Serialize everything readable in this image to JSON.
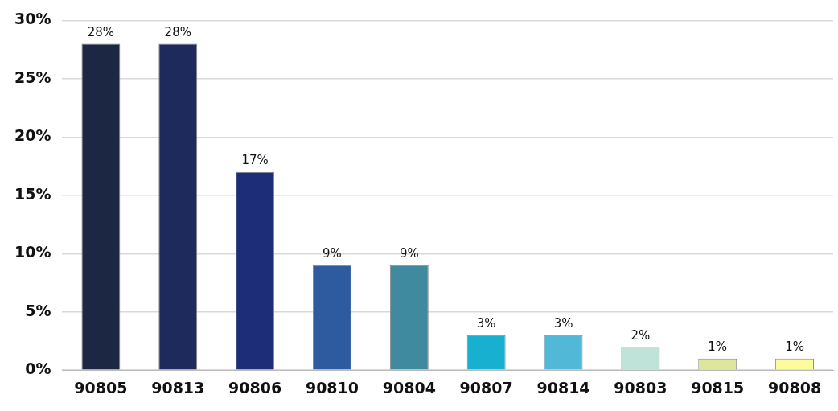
{
  "chart_data": {
    "type": "bar",
    "categories": [
      "90805",
      "90813",
      "90806",
      "90810",
      "90804",
      "90807",
      "90814",
      "90803",
      "90815",
      "90808"
    ],
    "values": [
      28,
      28,
      17,
      9,
      9,
      3,
      3,
      2,
      1,
      1
    ],
    "value_labels": [
      "28%",
      "28%",
      "17%",
      "9%",
      "9%",
      "3%",
      "3%",
      "2%",
      "1%",
      "1%"
    ],
    "colors": [
      "#1c2744",
      "#1f2a5c",
      "#1e2d78",
      "#2e5aa0",
      "#3f8a9e",
      "#17b0d0",
      "#52b8d8",
      "#bfe3d8",
      "#dde69a",
      "#fcfc9c"
    ],
    "ylim": [
      0,
      30
    ],
    "yticks": [
      {
        "value": 0,
        "label": "0%"
      },
      {
        "value": 5,
        "label": "5%"
      },
      {
        "value": 10,
        "label": "10%"
      },
      {
        "value": 15,
        "label": "15%"
      },
      {
        "value": 20,
        "label": "20%"
      },
      {
        "value": 25,
        "label": "25%"
      },
      {
        "value": 30,
        "label": "30%"
      }
    ],
    "grid": "y",
    "legend": false
  }
}
